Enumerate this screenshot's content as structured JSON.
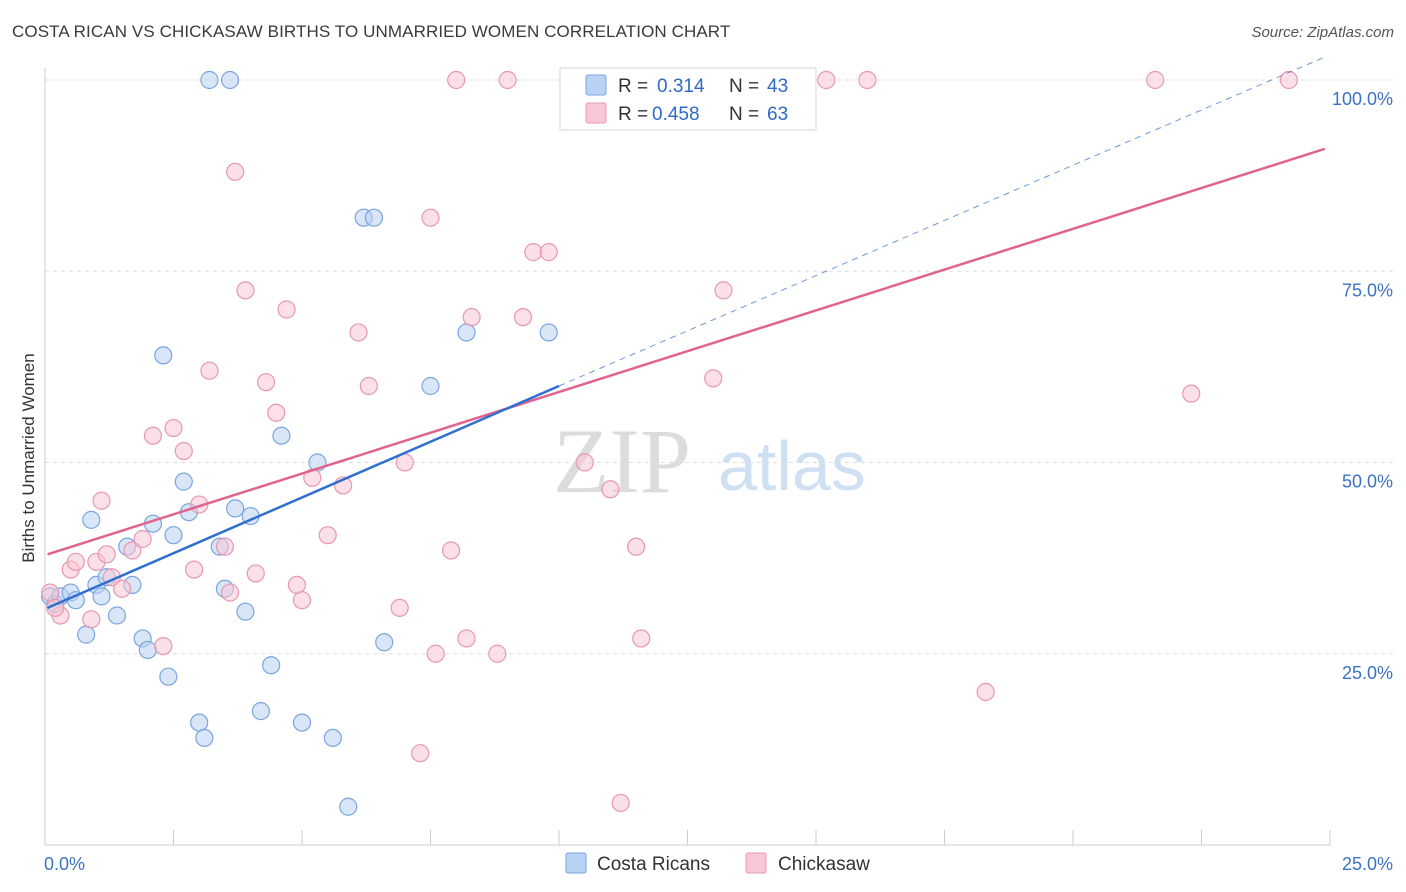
{
  "title": "COSTA RICAN VS CHICKASAW BIRTHS TO UNMARRIED WOMEN CORRELATION CHART",
  "source": "Source: ZipAtlas.com",
  "watermark": {
    "zip": "ZIP",
    "atlas": "atlas"
  },
  "colors": {
    "blue_fill": "#b9d2f3",
    "blue_stroke": "#7aa5e0",
    "blue_line": "#2f6fcf",
    "pink_fill": "#f8c6d4",
    "pink_stroke": "#e897b0",
    "pink_line": "#e0648f",
    "tick_text": "#3c72c4",
    "grid": "#dddddd"
  },
  "legend": {
    "rows": [
      {
        "r_label": "R =",
        "r_value": "0.314",
        "n_label": "N =",
        "n_value": "43"
      },
      {
        "r_label": "R =",
        "r_value": "0.458",
        "n_label": "N =",
        "n_value": "63"
      }
    ]
  },
  "chart_data": {
    "type": "scatter",
    "title": "COSTA RICAN VS CHICKASAW BIRTHS TO UNMARRIED WOMEN CORRELATION CHART",
    "xlabel": "",
    "ylabel": "Births to Unmarried Women",
    "xlim": [
      0,
      25
    ],
    "ylim": [
      0,
      100
    ],
    "x_tick_labels": [
      "0.0%",
      "25.0%"
    ],
    "y_tick_labels": [
      "25.0%",
      "50.0%",
      "75.0%",
      "100.0%"
    ],
    "y_ticks": [
      25,
      50,
      75,
      100
    ],
    "grid": "horizontal dashed",
    "legend_position": "top-center",
    "series": [
      {
        "name": "Costa Ricans",
        "r": 0.314,
        "n": 43,
        "trend": {
          "x": [
            0.05,
            10.0
          ],
          "y": [
            31.0,
            60.0
          ],
          "extended_dashed_to": [
            24.9,
            103.0
          ]
        },
        "points": [
          [
            0.1,
            32.5
          ],
          [
            0.2,
            31.5
          ],
          [
            0.3,
            32.5
          ],
          [
            0.5,
            33.0
          ],
          [
            0.6,
            32.0
          ],
          [
            0.8,
            27.5
          ],
          [
            0.9,
            42.5
          ],
          [
            1.0,
            34.0
          ],
          [
            1.1,
            32.5
          ],
          [
            1.2,
            35.0
          ],
          [
            1.4,
            30.0
          ],
          [
            1.6,
            39.0
          ],
          [
            1.7,
            34.0
          ],
          [
            1.9,
            27.0
          ],
          [
            2.0,
            25.5
          ],
          [
            2.1,
            42.0
          ],
          [
            2.3,
            64.0
          ],
          [
            2.4,
            22.0
          ],
          [
            2.5,
            40.5
          ],
          [
            2.7,
            47.5
          ],
          [
            2.8,
            43.5
          ],
          [
            3.0,
            16.0
          ],
          [
            3.1,
            14.0
          ],
          [
            3.2,
            100.0
          ],
          [
            3.4,
            39.0
          ],
          [
            3.5,
            33.5
          ],
          [
            3.6,
            100.0
          ],
          [
            3.7,
            44.0
          ],
          [
            3.9,
            30.5
          ],
          [
            4.0,
            43.0
          ],
          [
            4.2,
            17.5
          ],
          [
            4.4,
            23.5
          ],
          [
            4.6,
            53.5
          ],
          [
            5.0,
            16.0
          ],
          [
            5.3,
            50.0
          ],
          [
            5.6,
            14.0
          ],
          [
            5.9,
            5.0
          ],
          [
            6.2,
            82.0
          ],
          [
            6.4,
            82.0
          ],
          [
            6.6,
            26.5
          ],
          [
            7.5,
            60.0
          ],
          [
            8.2,
            67.0
          ],
          [
            9.8,
            67.0
          ]
        ]
      },
      {
        "name": "Chickasaw",
        "r": 0.458,
        "n": 63,
        "trend": {
          "x": [
            0.05,
            24.9
          ],
          "y": [
            38.0,
            91.0
          ]
        },
        "points": [
          [
            0.1,
            33.0
          ],
          [
            0.3,
            30.0
          ],
          [
            0.5,
            36.0
          ],
          [
            0.6,
            37.0
          ],
          [
            0.9,
            29.5
          ],
          [
            1.0,
            37.0
          ],
          [
            1.1,
            45.0
          ],
          [
            1.2,
            38.0
          ],
          [
            1.3,
            35.0
          ],
          [
            1.5,
            33.5
          ],
          [
            1.7,
            38.5
          ],
          [
            1.9,
            40.0
          ],
          [
            2.1,
            53.5
          ],
          [
            2.3,
            26.0
          ],
          [
            2.5,
            54.5
          ],
          [
            2.7,
            51.5
          ],
          [
            2.9,
            36.0
          ],
          [
            3.0,
            44.5
          ],
          [
            3.2,
            62.0
          ],
          [
            3.5,
            39.0
          ],
          [
            3.6,
            33.0
          ],
          [
            3.7,
            88.0
          ],
          [
            3.9,
            72.5
          ],
          [
            4.1,
            35.5
          ],
          [
            4.3,
            60.5
          ],
          [
            4.5,
            56.5
          ],
          [
            4.7,
            70.0
          ],
          [
            4.9,
            34.0
          ],
          [
            5.0,
            32.0
          ],
          [
            5.2,
            48.0
          ],
          [
            5.5,
            40.5
          ],
          [
            5.8,
            47.0
          ],
          [
            6.1,
            67.0
          ],
          [
            6.3,
            60.0
          ],
          [
            6.9,
            31.0
          ],
          [
            7.0,
            50.0
          ],
          [
            7.3,
            12.0
          ],
          [
            7.5,
            82.0
          ],
          [
            7.6,
            25.0
          ],
          [
            7.9,
            38.5
          ],
          [
            8.0,
            100.0
          ],
          [
            8.2,
            27.0
          ],
          [
            8.3,
            69.0
          ],
          [
            8.8,
            25.0
          ],
          [
            9.0,
            100.0
          ],
          [
            9.3,
            69.0
          ],
          [
            9.5,
            77.5
          ],
          [
            9.8,
            77.5
          ],
          [
            10.5,
            50.0
          ],
          [
            11.0,
            46.5
          ],
          [
            11.2,
            5.5
          ],
          [
            11.5,
            39.0
          ],
          [
            11.6,
            27.0
          ],
          [
            13.0,
            61.0
          ],
          [
            13.2,
            72.5
          ],
          [
            13.5,
            100.0
          ],
          [
            15.2,
            100.0
          ],
          [
            16.0,
            100.0
          ],
          [
            18.3,
            20.0
          ],
          [
            21.6,
            100.0
          ],
          [
            22.3,
            59.0
          ],
          [
            24.2,
            100.0
          ],
          [
            0.2,
            31.0
          ]
        ]
      }
    ]
  }
}
